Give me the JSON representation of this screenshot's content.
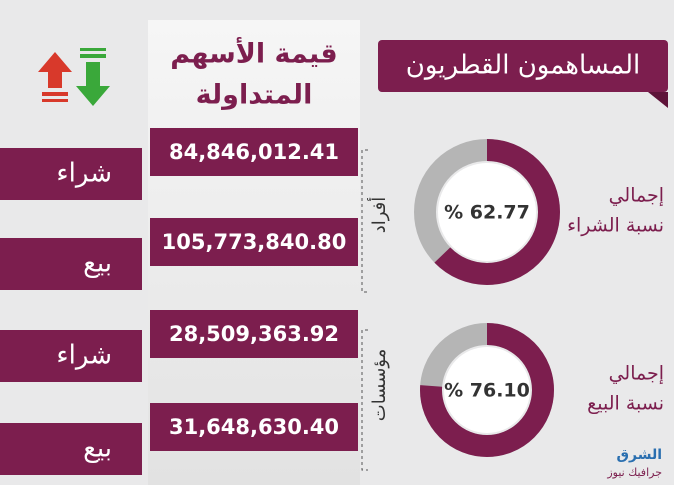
{
  "header": {
    "title": "المساهمون القطريون",
    "value_column": [
      "قيمة الأسهم",
      "المتداولة"
    ]
  },
  "rows": [
    {
      "side": "شراء",
      "value": "84,846,012.41"
    },
    {
      "side": "بيع",
      "value": "105,773,840.80"
    },
    {
      "side": "شراء",
      "value": "28,509,363.92"
    },
    {
      "side": "بيع",
      "value": "31,648,630.40"
    }
  ],
  "groups": [
    {
      "label": "أفراد"
    },
    {
      "label": "مؤسسات"
    }
  ],
  "donuts": [
    {
      "label": [
        "إجمالي",
        "نسبة الشراء"
      ],
      "value": 62.77,
      "value_label": "% 62.77"
    },
    {
      "label": [
        "إجمالي",
        "نسبة البيع"
      ],
      "value": 76.1,
      "value_label": "% 76.10"
    }
  ],
  "logo": {
    "brand": "الشرق",
    "sub": "جرافيك نيوز"
  }
}
